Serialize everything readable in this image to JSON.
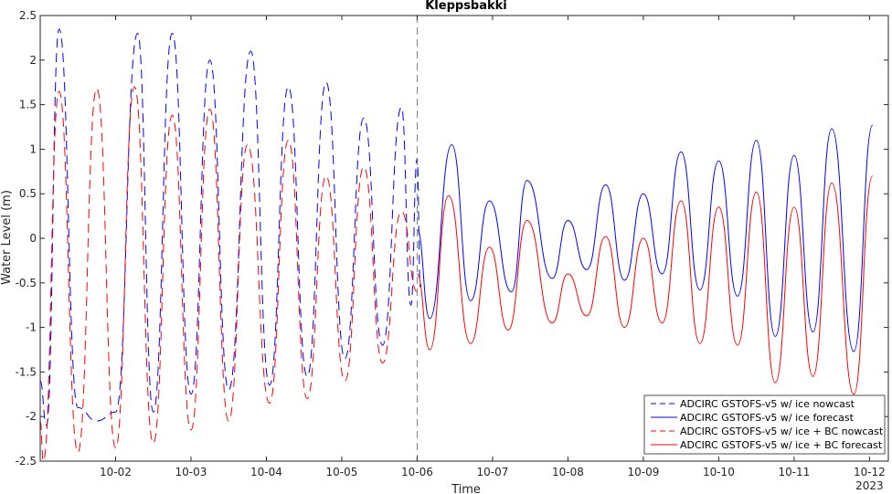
{
  "chart_data": {
    "type": "line",
    "title": "Kleppsbakki",
    "xlabel": "Time",
    "ylabel": "Water Level (m)",
    "ylim": [
      -2.5,
      2.5
    ],
    "yticks": [
      "-2.5",
      "-2",
      "-1.5",
      "-1",
      "-0.5",
      "0",
      "0.5",
      "1",
      "1.5",
      "2",
      "2.5"
    ],
    "xlim": [
      "2023-10-01 00:00",
      "2023-10-12 06:00"
    ],
    "xticks": [
      "10-02",
      "10-03",
      "10-04",
      "10-05",
      "10-06",
      "10-07",
      "10-08",
      "10-09",
      "10-10",
      "10-11",
      "10-12"
    ],
    "x_year_label": "2023",
    "nowcast_forecast_boundary": "2023-10-06 00:00",
    "grid": false,
    "legend_position": "bottom-right",
    "series": [
      {
        "name": "ADCIRC GSTOFS-v5 w/ ice nowcast",
        "color": "#0000ff",
        "style": "dashed",
        "points": [
          [
            "2023-10-01 00:00",
            -1.6
          ],
          [
            "2023-10-01 02:00",
            -2.1
          ],
          [
            "2023-10-01 06:00",
            2.35
          ],
          [
            "2023-10-01 12:00",
            -1.9
          ],
          [
            "2023-10-01 18:00",
            -2.05
          ],
          [
            "2023-10-02 00:00",
            -1.95
          ],
          [
            "2023-10-02 07:00",
            2.3
          ],
          [
            "2023-10-02 12:00",
            -1.95
          ],
          [
            "2023-10-02 18:00",
            2.3
          ],
          [
            "2023-10-03 00:00",
            -1.75
          ],
          [
            "2023-10-03 06:00",
            2.0
          ],
          [
            "2023-10-03 12:00",
            -1.7
          ],
          [
            "2023-10-03 19:00",
            2.1
          ],
          [
            "2023-10-04 01:00",
            -1.65
          ],
          [
            "2023-10-04 07:00",
            1.7
          ],
          [
            "2023-10-04 13:00",
            -1.55
          ],
          [
            "2023-10-04 19:00",
            1.75
          ],
          [
            "2023-10-05 01:00",
            -1.35
          ],
          [
            "2023-10-05 07:00",
            1.35
          ],
          [
            "2023-10-05 13:00",
            -1.2
          ],
          [
            "2023-10-05 19:00",
            1.47
          ],
          [
            "2023-10-06 01:00",
            -0.55
          ],
          [
            "2023-10-05 22:00",
            -0.75
          ],
          [
            "2023-10-06 00:00",
            0.9
          ]
        ]
      },
      {
        "name": "ADCIRC GSTOFS-v5 w/ ice forecast",
        "color": "#0000ff",
        "style": "solid",
        "points": [
          [
            "2023-10-06 00:00",
            0.1
          ],
          [
            "2023-10-06 04:00",
            -0.9
          ],
          [
            "2023-10-06 11:00",
            1.05
          ],
          [
            "2023-10-06 17:00",
            -0.7
          ],
          [
            "2023-10-06 23:00",
            0.42
          ],
          [
            "2023-10-07 06:00",
            -0.6
          ],
          [
            "2023-10-07 11:00",
            0.65
          ],
          [
            "2023-10-07 19:00",
            -0.45
          ],
          [
            "2023-10-08 00:00",
            0.2
          ],
          [
            "2023-10-08 06:00",
            -0.35
          ],
          [
            "2023-10-08 12:00",
            0.6
          ],
          [
            "2023-10-08 18:00",
            -0.47
          ],
          [
            "2023-10-09 00:00",
            0.5
          ],
          [
            "2023-10-09 06:00",
            -0.4
          ],
          [
            "2023-10-09 12:00",
            0.97
          ],
          [
            "2023-10-09 18:00",
            -0.58
          ],
          [
            "2023-10-10 00:00",
            0.87
          ],
          [
            "2023-10-10 06:00",
            -0.65
          ],
          [
            "2023-10-10 12:00",
            1.1
          ],
          [
            "2023-10-10 18:00",
            -1.1
          ],
          [
            "2023-10-11 00:00",
            0.93
          ],
          [
            "2023-10-11 06:00",
            -1.05
          ],
          [
            "2023-10-11 12:00",
            1.23
          ],
          [
            "2023-10-11 19:00",
            -1.27
          ],
          [
            "2023-10-12 01:00",
            1.27
          ]
        ]
      },
      {
        "name": "ADCIRC GSTOFS-v5 w/ ice + BC nowcast",
        "color": "#ff0000",
        "style": "dashed",
        "points": [
          [
            "2023-10-01 00:00",
            -2.05
          ],
          [
            "2023-10-01 01:00",
            -2.5
          ],
          [
            "2023-10-01 06:00",
            1.65
          ],
          [
            "2023-10-01 12:00",
            -2.4
          ],
          [
            "2023-10-01 18:00",
            1.68
          ],
          [
            "2023-10-02 00:00",
            -2.35
          ],
          [
            "2023-10-02 06:00",
            1.7
          ],
          [
            "2023-10-02 12:00",
            -2.3
          ],
          [
            "2023-10-02 18:00",
            1.38
          ],
          [
            "2023-10-03 00:00",
            -2.15
          ],
          [
            "2023-10-03 06:00",
            1.45
          ],
          [
            "2023-10-03 12:00",
            -2.05
          ],
          [
            "2023-10-03 18:00",
            1.05
          ],
          [
            "2023-10-04 01:00",
            -1.85
          ],
          [
            "2023-10-04 07:00",
            1.1
          ],
          [
            "2023-10-04 13:00",
            -1.8
          ],
          [
            "2023-10-04 19:00",
            0.7
          ],
          [
            "2023-10-05 01:00",
            -1.6
          ],
          [
            "2023-10-05 07:00",
            0.8
          ],
          [
            "2023-10-05 13:00",
            -1.4
          ],
          [
            "2023-10-05 19:00",
            0.3
          ],
          [
            "2023-10-06 00:00",
            -0.6
          ]
        ]
      },
      {
        "name": "ADCIRC GSTOFS-v5 w/ ice + BC forecast",
        "color": "#ff0000",
        "style": "solid",
        "points": [
          [
            "2023-10-06 00:00",
            -0.4
          ],
          [
            "2023-10-06 04:00",
            -1.25
          ],
          [
            "2023-10-06 10:00",
            0.48
          ],
          [
            "2023-10-06 17:00",
            -1.18
          ],
          [
            "2023-10-06 23:00",
            -0.1
          ],
          [
            "2023-10-07 05:00",
            -1.03
          ],
          [
            "2023-10-07 11:00",
            0.2
          ],
          [
            "2023-10-07 19:00",
            -0.95
          ],
          [
            "2023-10-08 00:00",
            -0.4
          ],
          [
            "2023-10-08 06:00",
            -0.87
          ],
          [
            "2023-10-08 12:00",
            0.02
          ],
          [
            "2023-10-08 18:00",
            -1.0
          ],
          [
            "2023-10-09 00:00",
            0.0
          ],
          [
            "2023-10-09 06:00",
            -0.95
          ],
          [
            "2023-10-09 12:00",
            0.42
          ],
          [
            "2023-10-09 18:00",
            -1.18
          ],
          [
            "2023-10-10 00:00",
            0.35
          ],
          [
            "2023-10-10 06:00",
            -1.2
          ],
          [
            "2023-10-10 12:00",
            0.52
          ],
          [
            "2023-10-10 18:00",
            -1.62
          ],
          [
            "2023-10-11 00:00",
            0.35
          ],
          [
            "2023-10-11 06:00",
            -1.55
          ],
          [
            "2023-10-11 12:00",
            0.62
          ],
          [
            "2023-10-11 19:00",
            -1.75
          ],
          [
            "2023-10-12 01:00",
            0.7
          ]
        ]
      }
    ]
  }
}
